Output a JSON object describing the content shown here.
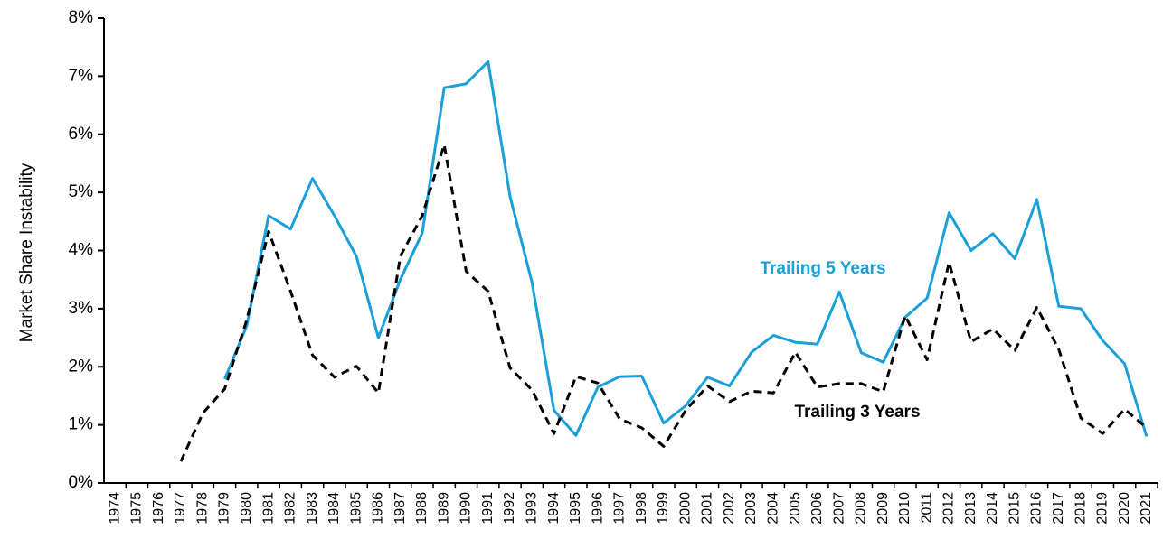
{
  "chart_data": {
    "type": "line",
    "y_label": "Market Share Instability",
    "categories": [
      "1974",
      "1975",
      "1976",
      "1977",
      "1978",
      "1979",
      "1980",
      "1981",
      "1982",
      "1983",
      "1984",
      "1985",
      "1986",
      "1987",
      "1988",
      "1989",
      "1990",
      "1991",
      "1992",
      "1993",
      "1994",
      "1995",
      "1996",
      "1997",
      "1998",
      "1999",
      "2000",
      "2001",
      "2002",
      "2003",
      "2004",
      "2005",
      "2006",
      "2007",
      "2008",
      "2009",
      "2010",
      "2011",
      "2012",
      "2013",
      "2014",
      "2015",
      "2016",
      "2017",
      "2018",
      "2019",
      "2020",
      "2021"
    ],
    "series": [
      {
        "name": "Trailing 5 Years",
        "color": "#1a9fd9",
        "dashed": false,
        "values": [
          null,
          null,
          null,
          null,
          null,
          1.79,
          2.7,
          4.6,
          4.37,
          5.24,
          4.6,
          3.9,
          2.5,
          3.5,
          4.3,
          6.8,
          6.87,
          7.25,
          4.93,
          3.45,
          1.25,
          0.82,
          1.65,
          1.83,
          1.84,
          1.03,
          1.33,
          1.82,
          1.67,
          2.25,
          2.54,
          2.42,
          2.39,
          3.29,
          2.24,
          2.08,
          2.85,
          3.18,
          4.65,
          4.0,
          4.29,
          3.86,
          4.88,
          3.04,
          3.0,
          2.45,
          2.05,
          0.8
        ]
      },
      {
        "name": "Trailing 3 Years",
        "color": "#000000",
        "dashed": true,
        "values": [
          null,
          null,
          null,
          0.37,
          1.2,
          1.62,
          2.8,
          4.33,
          3.3,
          2.2,
          1.82,
          2.01,
          1.55,
          3.9,
          4.6,
          5.82,
          3.64,
          3.3,
          1.98,
          1.6,
          0.85,
          1.83,
          1.72,
          1.1,
          0.95,
          0.63,
          1.25,
          1.67,
          1.4,
          1.58,
          1.55,
          2.25,
          1.65,
          1.71,
          1.71,
          1.57,
          2.88,
          2.12,
          3.8,
          2.43,
          2.65,
          2.28,
          3.02,
          2.3,
          1.12,
          0.85,
          1.27,
          0.95
        ]
      }
    ],
    "ylim": [
      0,
      8
    ],
    "yticks": [
      {
        "value": 0,
        "label": "0%"
      },
      {
        "value": 1,
        "label": "1%"
      },
      {
        "value": 2,
        "label": "2%"
      },
      {
        "value": 3,
        "label": "3%"
      },
      {
        "value": 4,
        "label": "4%"
      },
      {
        "value": 5,
        "label": "5%"
      },
      {
        "value": 6,
        "label": "6%"
      },
      {
        "value": 7,
        "label": "7%"
      },
      {
        "value": 8,
        "label": "8%"
      }
    ],
    "grid": false
  }
}
